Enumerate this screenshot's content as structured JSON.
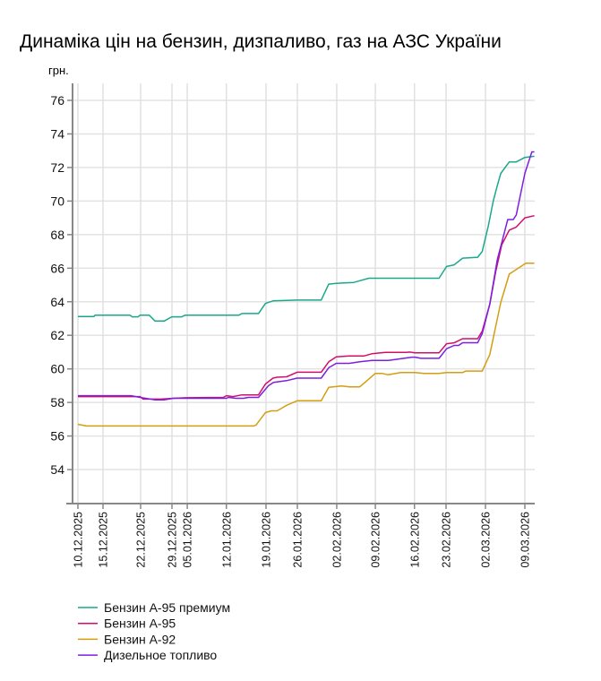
{
  "chart_data": {
    "type": "line",
    "title": "Динаміка цін на бензин, дизпаливо, газ на АЗС України",
    "ylabel": "грн.",
    "xlabel": "",
    "ylim": [
      52,
      77
    ],
    "yticks": [
      54,
      56,
      58,
      60,
      62,
      64,
      66,
      68,
      70,
      72,
      74,
      76
    ],
    "xlim": [
      0,
      91
    ],
    "x_unit": "observation index",
    "xticks": [
      {
        "x": 0,
        "label": "10.12.2025"
      },
      {
        "x": 5,
        "label": "15.12.2025"
      },
      {
        "x": 12.5,
        "label": "22.12.2025"
      },
      {
        "x": 18.75,
        "label": "29.12.2025"
      },
      {
        "x": 21.8,
        "label": "05.01.2026"
      },
      {
        "x": 29.6,
        "label": "12.01.2026"
      },
      {
        "x": 37.5,
        "label": "19.01.2026"
      },
      {
        "x": 43.75,
        "label": "26.01.2026"
      },
      {
        "x": 51.6,
        "label": "02.02.2026"
      },
      {
        "x": 59.3,
        "label": "09.02.2026"
      },
      {
        "x": 67.1,
        "label": "16.02.2026"
      },
      {
        "x": 73.4,
        "label": "23.02.2026"
      },
      {
        "x": 81.25,
        "label": "02.03.2026"
      },
      {
        "x": 89.1,
        "label": "09.03.2026"
      }
    ],
    "grid": true,
    "legend_position": "bottom-left",
    "series": [
      {
        "name": "Бензин А-95 премиум",
        "color": "#1aa88c",
        "points": [
          [
            0,
            63.12
          ],
          [
            3.2,
            63.12
          ],
          [
            3.4,
            63.2
          ],
          [
            10.4,
            63.2
          ],
          [
            10.8,
            63.1
          ],
          [
            12,
            63.1
          ],
          [
            12.4,
            63.2
          ],
          [
            14.2,
            63.2
          ],
          [
            15.4,
            62.85
          ],
          [
            17.2,
            62.85
          ],
          [
            18.7,
            63.1
          ],
          [
            20.7,
            63.1
          ],
          [
            21.4,
            63.2
          ],
          [
            32.1,
            63.2
          ],
          [
            32.7,
            63.3
          ],
          [
            36,
            63.3
          ],
          [
            37.4,
            63.9
          ],
          [
            38.9,
            64.05
          ],
          [
            43.7,
            64.1
          ],
          [
            48.5,
            64.1
          ],
          [
            50,
            65.05
          ],
          [
            51.5,
            65.1
          ],
          [
            55,
            65.15
          ],
          [
            56.2,
            65.25
          ],
          [
            58,
            65.4
          ],
          [
            72,
            65.4
          ],
          [
            73.5,
            66.1
          ],
          [
            75,
            66.2
          ],
          [
            76.7,
            66.6
          ],
          [
            79.7,
            66.65
          ],
          [
            80.6,
            67.0
          ],
          [
            81.8,
            68.5
          ],
          [
            82.8,
            70.0
          ],
          [
            83.5,
            70.8
          ],
          [
            84.3,
            71.65
          ],
          [
            86,
            72.33
          ],
          [
            87.4,
            72.33
          ],
          [
            89.1,
            72.6
          ],
          [
            91,
            72.67
          ]
        ]
      },
      {
        "name": "Бензин А-95",
        "color": "#d10f6b",
        "points": [
          [
            0,
            58.35
          ],
          [
            12.4,
            58.35
          ],
          [
            13,
            58.2
          ],
          [
            16.6,
            58.2
          ],
          [
            19,
            58.25
          ],
          [
            21.5,
            58.28
          ],
          [
            29,
            58.3
          ],
          [
            29.6,
            58.4
          ],
          [
            30.9,
            58.35
          ],
          [
            32.7,
            58.45
          ],
          [
            36,
            58.45
          ],
          [
            37.4,
            59.1
          ],
          [
            38.9,
            59.45
          ],
          [
            39.7,
            59.5
          ],
          [
            41.6,
            59.53
          ],
          [
            43.7,
            59.8
          ],
          [
            48.5,
            59.8
          ],
          [
            50,
            60.42
          ],
          [
            51.5,
            60.72
          ],
          [
            54.1,
            60.77
          ],
          [
            57,
            60.77
          ],
          [
            58.6,
            60.9
          ],
          [
            61.3,
            60.98
          ],
          [
            65.5,
            60.98
          ],
          [
            66.1,
            61.0
          ],
          [
            67.2,
            60.96
          ],
          [
            72,
            60.96
          ],
          [
            73.5,
            61.5
          ],
          [
            75,
            61.55
          ],
          [
            76.7,
            61.8
          ],
          [
            79.7,
            61.8
          ],
          [
            80.6,
            62.25
          ],
          [
            82.1,
            63.85
          ],
          [
            83.3,
            65.8
          ],
          [
            84.5,
            67.4
          ],
          [
            86,
            68.27
          ],
          [
            87.4,
            68.45
          ],
          [
            89.1,
            69.0
          ],
          [
            91,
            69.13
          ]
        ]
      },
      {
        "name": "Бензин А-92",
        "color": "#d49e12",
        "points": [
          [
            0,
            56.7
          ],
          [
            1.7,
            56.6
          ],
          [
            35,
            56.6
          ],
          [
            35.5,
            56.65
          ],
          [
            37.4,
            57.4
          ],
          [
            38.6,
            57.5
          ],
          [
            39.7,
            57.5
          ],
          [
            40.3,
            57.6
          ],
          [
            41.6,
            57.83
          ],
          [
            43.7,
            58.1
          ],
          [
            48.5,
            58.1
          ],
          [
            50,
            58.9
          ],
          [
            52.6,
            58.98
          ],
          [
            54.1,
            58.93
          ],
          [
            56.2,
            58.93
          ],
          [
            59.3,
            59.73
          ],
          [
            60.6,
            59.73
          ],
          [
            61.8,
            59.65
          ],
          [
            64.4,
            59.78
          ],
          [
            67.2,
            59.78
          ],
          [
            69,
            59.73
          ],
          [
            72,
            59.73
          ],
          [
            73.5,
            59.78
          ],
          [
            76.7,
            59.78
          ],
          [
            77.3,
            59.87
          ],
          [
            80.6,
            59.87
          ],
          [
            82.1,
            60.85
          ],
          [
            84.3,
            63.96
          ],
          [
            86,
            65.65
          ],
          [
            87.4,
            65.92
          ],
          [
            89.3,
            66.3
          ],
          [
            91,
            66.3
          ]
        ]
      },
      {
        "name": "Дизельное топливо",
        "color": "#7c1fe0",
        "points": [
          [
            0,
            58.4
          ],
          [
            10.6,
            58.4
          ],
          [
            12.4,
            58.3
          ],
          [
            15.4,
            58.15
          ],
          [
            17.2,
            58.15
          ],
          [
            19,
            58.25
          ],
          [
            29.6,
            58.25
          ],
          [
            30,
            58.3
          ],
          [
            31.5,
            58.25
          ],
          [
            33,
            58.25
          ],
          [
            34,
            58.3
          ],
          [
            36,
            58.3
          ],
          [
            38,
            59.0
          ],
          [
            39,
            59.2
          ],
          [
            41.6,
            59.3
          ],
          [
            43.7,
            59.45
          ],
          [
            48.5,
            59.45
          ],
          [
            50,
            60.07
          ],
          [
            51.5,
            60.33
          ],
          [
            54.1,
            60.33
          ],
          [
            56.2,
            60.42
          ],
          [
            58.6,
            60.5
          ],
          [
            61.9,
            60.5
          ],
          [
            66.6,
            60.7
          ],
          [
            67.2,
            60.7
          ],
          [
            68.4,
            60.63
          ],
          [
            72,
            60.63
          ],
          [
            73.5,
            61.2
          ],
          [
            75,
            61.4
          ],
          [
            75.9,
            61.4
          ],
          [
            76.7,
            61.56
          ],
          [
            79.7,
            61.56
          ],
          [
            80.6,
            62.1
          ],
          [
            82.1,
            63.85
          ],
          [
            83.6,
            66.5
          ],
          [
            85.7,
            68.9
          ],
          [
            86.8,
            68.9
          ],
          [
            87.4,
            69.17
          ],
          [
            89.1,
            71.65
          ],
          [
            90.5,
            72.93
          ],
          [
            91,
            72.93
          ]
        ]
      }
    ]
  }
}
